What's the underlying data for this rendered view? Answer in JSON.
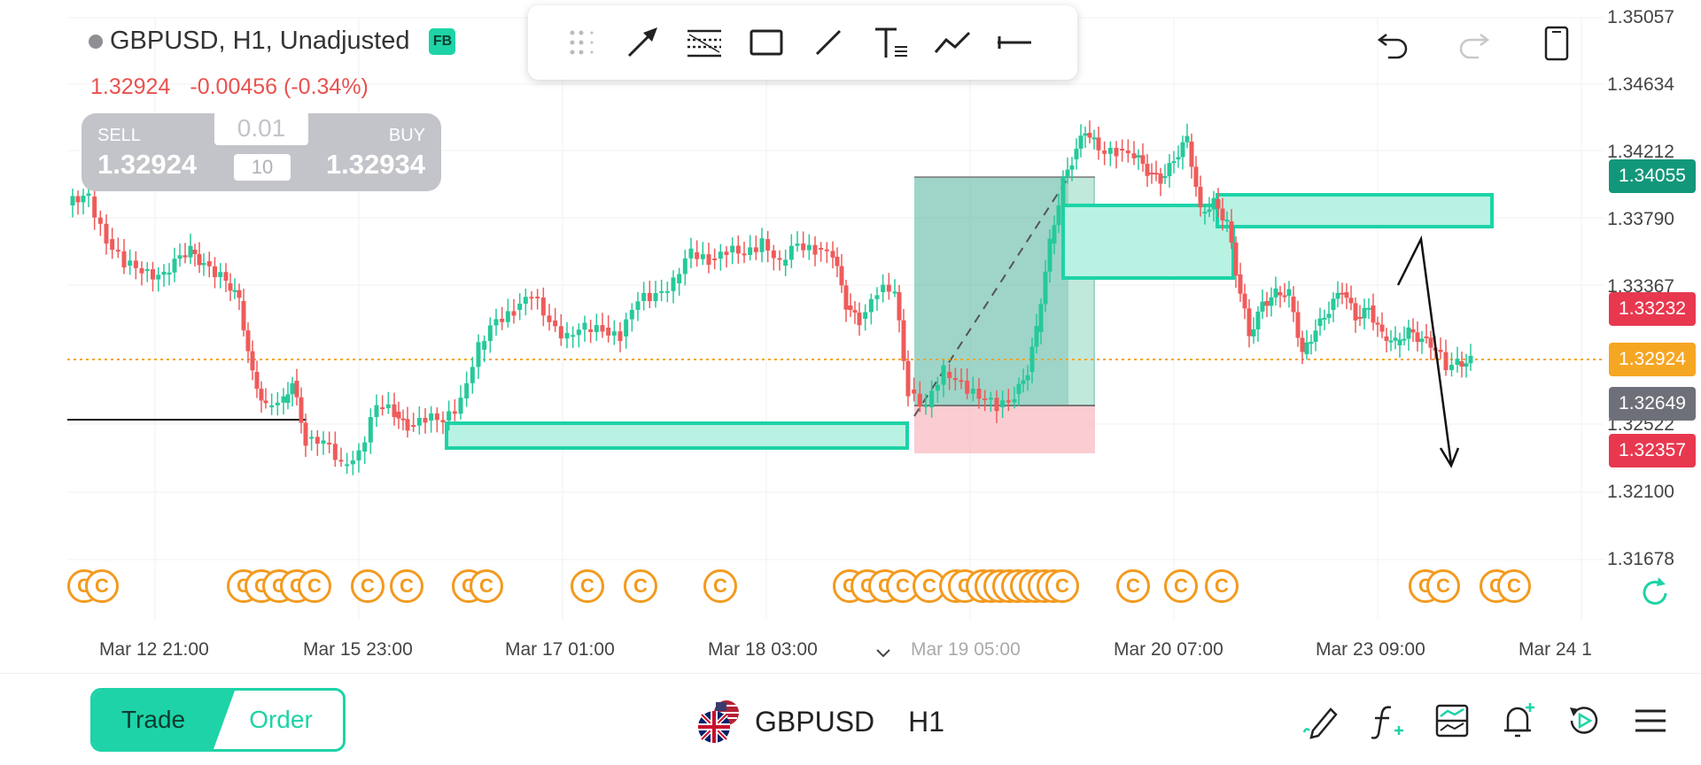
{
  "header": {
    "symbol_title": "GBPUSD, H1, Unadjusted",
    "badge": "FB",
    "last_price": "1.32924",
    "change": "-0.00456 (-0.34%)"
  },
  "trade_widget": {
    "sell_label": "SELL",
    "sell_price": "1.32924",
    "buy_label": "BUY",
    "buy_price": "1.32934",
    "lot": "0.01",
    "qty": "10"
  },
  "toolbar": {
    "tools": [
      "drag-handle-icon",
      "arrow-tool-icon",
      "fib-tool-icon",
      "rectangle-tool-icon",
      "line-tool-icon",
      "text-tool-icon",
      "path-tool-icon",
      "horizontal-ray-icon"
    ],
    "undo": "undo-icon",
    "redo": "redo-icon",
    "device": "device-icon"
  },
  "price_axis": {
    "labels": [
      "1.35057",
      "1.34634",
      "1.34212",
      "1.33790",
      "1.33367",
      "1.32522",
      "1.32100",
      "1.31678"
    ],
    "tags": [
      {
        "value": "1.34055",
        "color": "#13977a"
      },
      {
        "value": "1.33232",
        "color": "#e8384f"
      },
      {
        "value": "1.32924",
        "color": "#f5a623"
      },
      {
        "value": "1.32649",
        "color": "#6e7079"
      },
      {
        "value": "1.32357",
        "color": "#e8384f"
      }
    ]
  },
  "time_axis": {
    "labels": [
      "Mar 12 21:00",
      "Mar 15 23:00",
      "Mar 17 01:00",
      "Mar 18 03:00",
      "Mar 19 05:00",
      "Mar 20 07:00",
      "Mar 23 09:00",
      "Mar 24 1"
    ]
  },
  "events": {
    "glyph": "C"
  },
  "colors": {
    "bull": "#26c99a",
    "bear": "#ef5b5b",
    "zone_fill": "#b8f2e2",
    "zone_stroke": "#1dd3a7",
    "profit_zone": "#4fb39a",
    "loss_zone": "#f6b8bf",
    "current_price_line": "#f5a623"
  },
  "bottom_bar": {
    "trade_label": "Trade",
    "order_label": "Order",
    "symbol": "GBPUSD",
    "timeframe": "H1",
    "icons": [
      "draw-pen-icon",
      "indicator-icon",
      "chart-layers-icon",
      "alert-add-icon",
      "replay-icon",
      "menu-icon"
    ]
  }
}
